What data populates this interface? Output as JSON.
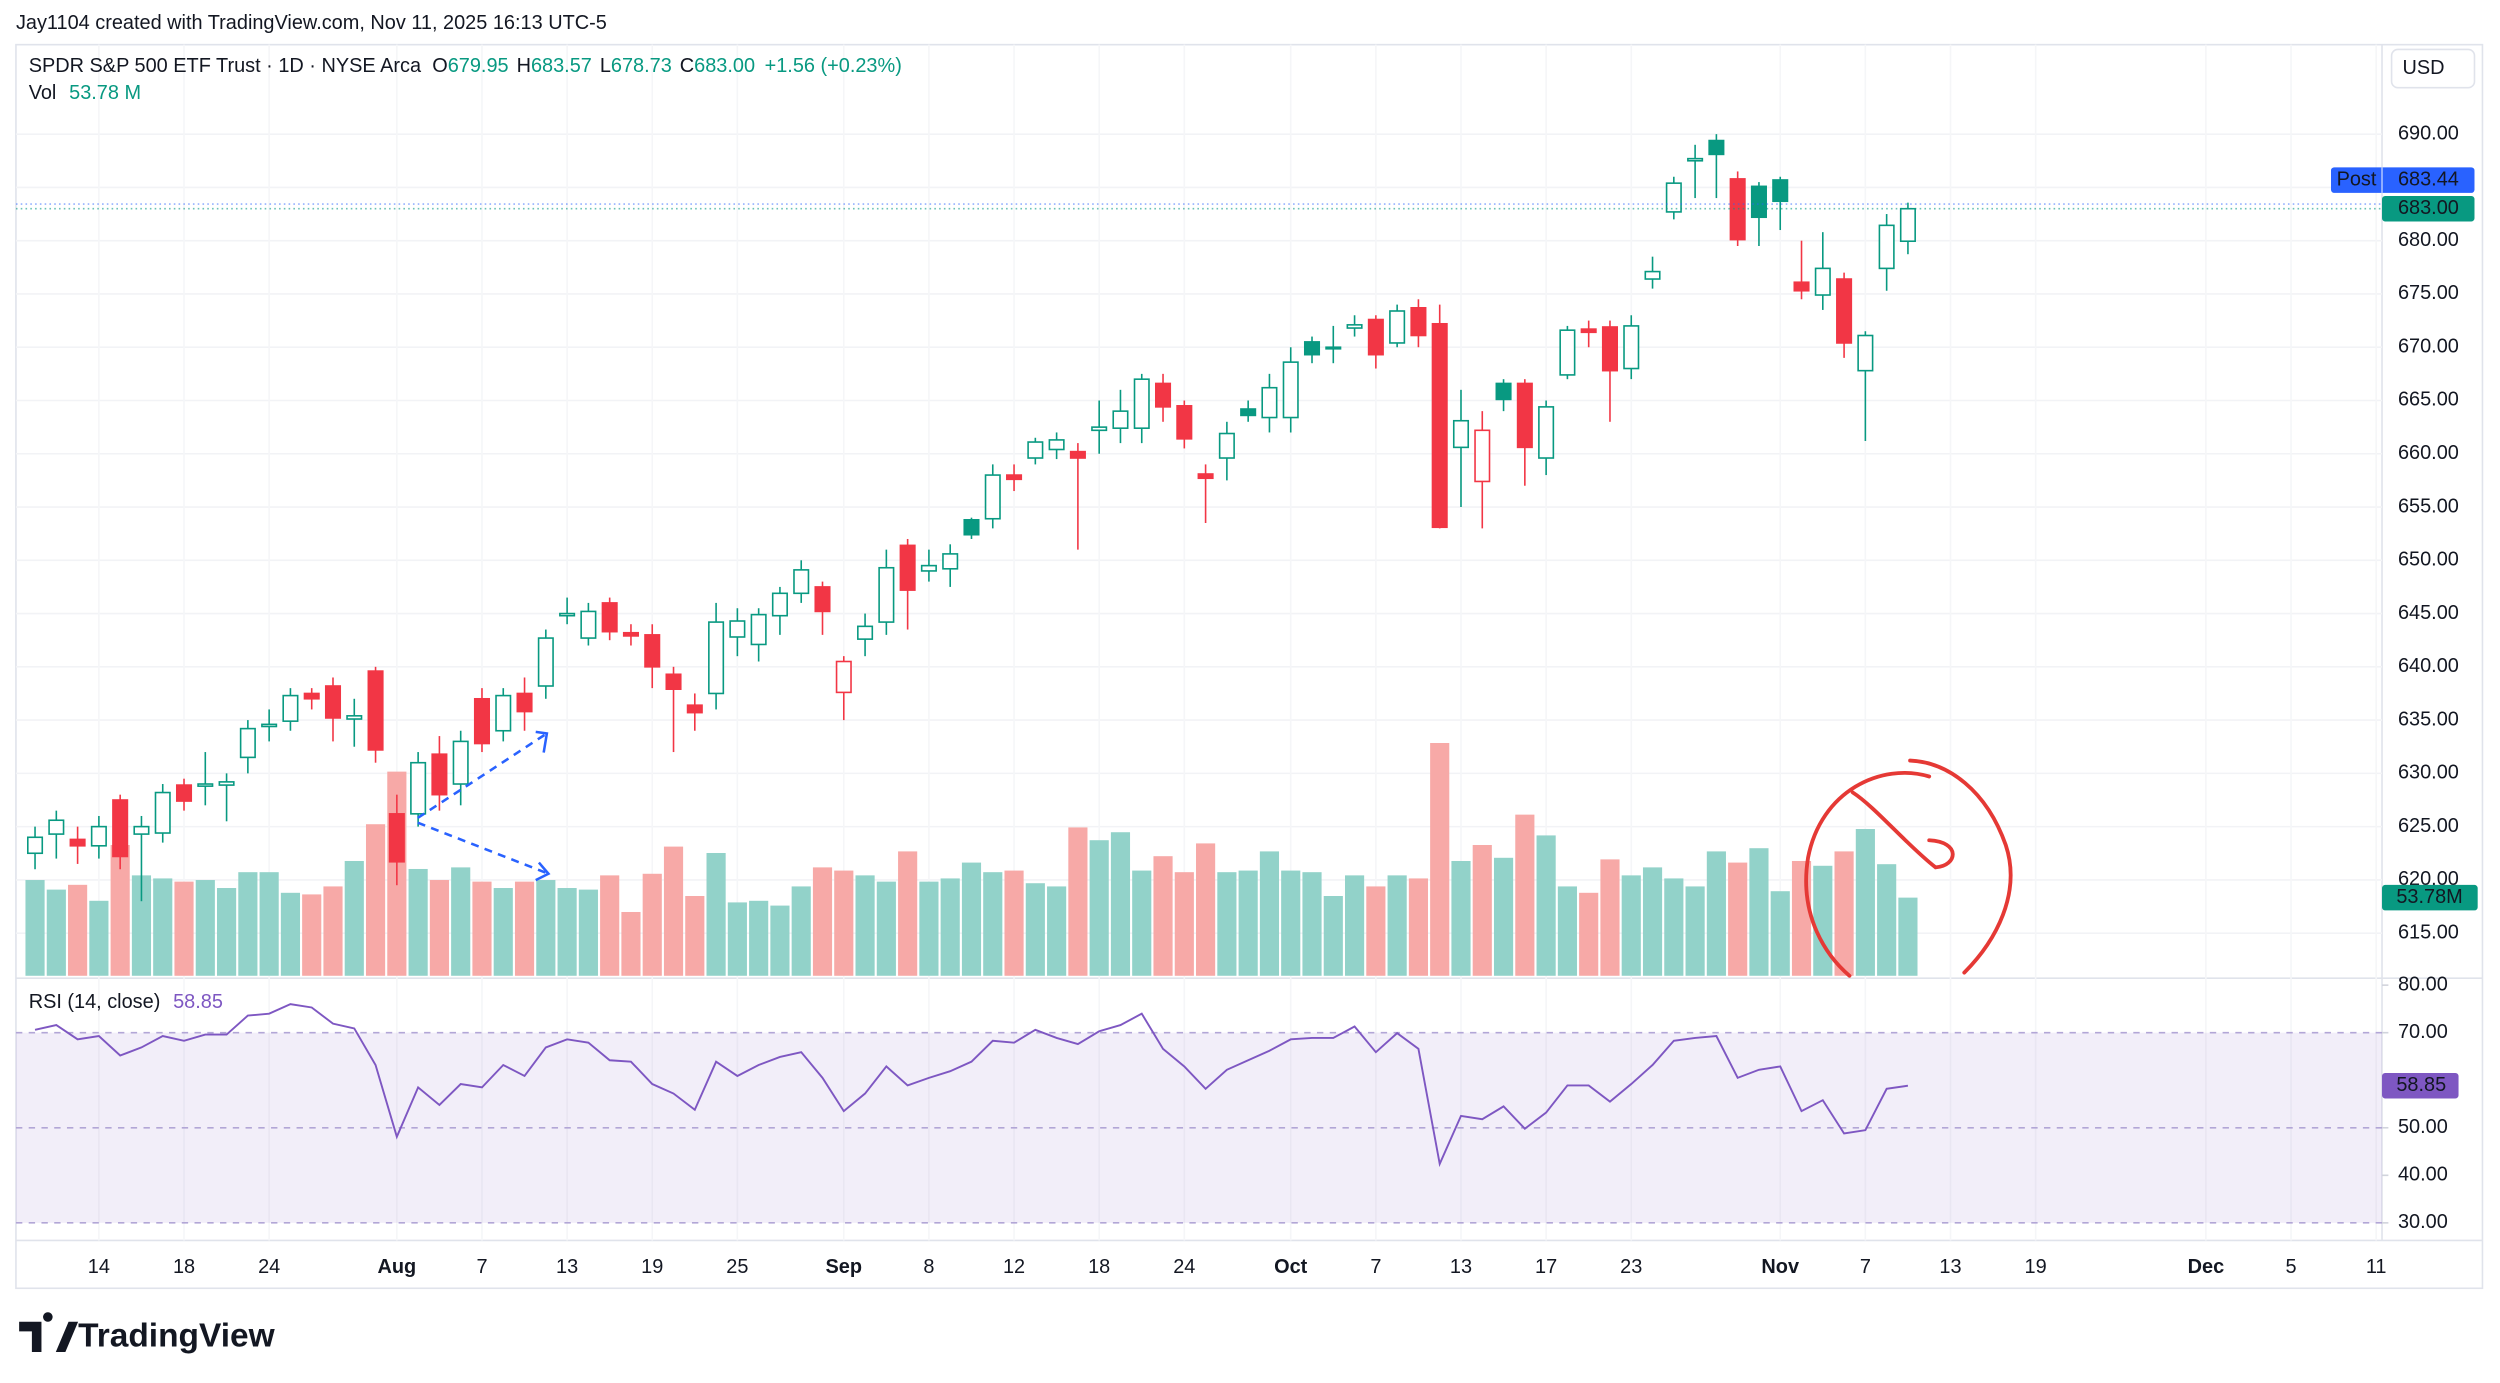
{
  "header": {
    "credit": "Jay1104 created with TradingView.com, Nov 11, 2025 16:13 UTC-5",
    "currency": "USD",
    "logo": "TradingView"
  },
  "chart_data": {
    "type": "candlestick",
    "title": "SPDR S&P 500 ETF Trust · 1D · NYSE Arca",
    "legend": {
      "open_label": "O",
      "high_label": "H",
      "low_label": "L",
      "close_label": "C",
      "close": "683.00",
      "change": "+1.56 (+0.23%)"
    },
    "categories": [
      null,
      null,
      null,
      "14",
      null,
      null,
      null,
      "18",
      null,
      null,
      null,
      "24",
      null,
      null,
      null,
      null,
      null,
      "Aug",
      null,
      null,
      null,
      "7",
      null,
      null,
      null,
      "13",
      null,
      null,
      null,
      "19",
      null,
      null,
      null,
      "25",
      null,
      null,
      null,
      null,
      "Sep",
      null,
      null,
      null,
      "8",
      null,
      null,
      null,
      "12",
      null,
      null,
      null,
      "18",
      null,
      null,
      null,
      "24",
      null,
      null,
      null,
      null,
      "Oct",
      null,
      null,
      null,
      "7",
      null,
      null,
      null,
      "13",
      null,
      null,
      null,
      "17",
      null,
      null,
      null,
      "23",
      null,
      null,
      null,
      null,
      null,
      null,
      "Nov",
      null,
      null,
      null,
      "7",
      null,
      null,
      null,
      "13",
      null,
      null,
      null,
      "19",
      null,
      null,
      null,
      null,
      null,
      null,
      null,
      "Dec",
      null,
      null,
      null,
      "5",
      null,
      null,
      null,
      "11"
    ],
    "open": [
      622.5,
      624.3,
      623.8,
      623.2,
      627.5,
      624.3,
      624.4,
      628.9,
      628.8,
      628.9,
      631.5,
      634.4,
      634.9,
      637.5,
      638.2,
      635.1,
      639.6,
      626.2,
      626.2,
      631.8,
      629,
      637,
      634,
      637.5,
      638.2,
      644.8,
      642.7,
      646,
      643.2,
      643,
      639.3,
      636.4,
      637.5,
      642.8,
      642.1,
      644.8,
      646.9,
      647.5,
      637.6,
      642.6,
      644.2,
      651.4,
      649,
      649.2,
      653.8,
      653.9,
      658,
      659.6,
      660.4,
      660.2,
      662.2,
      662.4,
      662.4,
      666.6,
      664.5,
      658.1,
      659.6,
      664.2,
      663.4,
      663.4,
      670.5,
      669.9,
      671.8,
      672.6,
      670.4,
      673.7,
      672.2,
      660.6,
      657.4,
      666.6,
      666.6,
      659.6,
      667.4,
      671.7,
      671.9,
      668,
      676.4,
      682.7,
      687.5,
      689.4,
      685.8,
      685.1,
      685.7,
      676.1,
      674.9,
      676.4,
      667.8,
      677.4,
      679.95,
      null,
      null,
      null,
      null,
      null,
      null,
      null,
      null,
      null,
      null,
      null,
      null,
      null,
      null,
      null,
      null,
      null,
      null,
      null,
      null,
      null,
      null
    ],
    "high": [
      625,
      626.5,
      625,
      626,
      628,
      626,
      629,
      629.5,
      632,
      630,
      635,
      636,
      638,
      638,
      639,
      637,
      640,
      628,
      632,
      633.5,
      634,
      638,
      638,
      639,
      643.5,
      646.5,
      646,
      646.5,
      644,
      644,
      640,
      637.5,
      646,
      645.5,
      645.5,
      647.5,
      650,
      648,
      641,
      645,
      651,
      652,
      651,
      651.5,
      654,
      659,
      659,
      661.5,
      662,
      661,
      665,
      666,
      667.5,
      667.5,
      665,
      659,
      663,
      665,
      667.5,
      670,
      671,
      672,
      673,
      673,
      674,
      674.5,
      674,
      666,
      664,
      667,
      667,
      665,
      672,
      672.5,
      672.5,
      673,
      678.5,
      686,
      689,
      690,
      686.5,
      685.5,
      686,
      680,
      680.8,
      677,
      671.5,
      682.5,
      683.57,
      null,
      null,
      null,
      null,
      null,
      null,
      null,
      null,
      null,
      null,
      null,
      null,
      null,
      null,
      null,
      null,
      null,
      null,
      null,
      null,
      null,
      null
    ],
    "low": [
      621,
      622,
      621.5,
      622,
      621,
      618,
      623.5,
      626.5,
      627,
      625.5,
      630,
      633,
      634,
      636,
      633,
      632.5,
      631,
      619.5,
      625,
      626.5,
      627,
      632,
      633,
      634,
      637,
      644,
      642,
      642.5,
      642,
      638,
      632,
      634,
      636,
      641,
      640.5,
      643,
      646,
      643,
      635,
      641,
      643,
      643.5,
      648,
      647.5,
      652,
      653,
      656.5,
      659,
      659.5,
      651,
      660,
      661,
      661,
      663,
      660.5,
      653.5,
      657.5,
      663,
      662,
      662,
      668.5,
      668.5,
      671,
      668,
      670,
      670,
      653,
      655,
      653,
      664,
      657,
      658,
      667,
      670,
      663,
      667,
      675.5,
      682,
      684,
      684,
      679.5,
      679.5,
      681,
      674.5,
      673.5,
      669,
      661.2,
      675.3,
      678.73,
      null,
      null,
      null,
      null,
      null,
      null,
      null,
      null,
      null,
      null,
      null,
      null,
      null,
      null,
      null,
      null,
      null,
      null,
      null,
      null,
      null,
      null
    ],
    "close": [
      624,
      625.6,
      623.2,
      625,
      622.2,
      625,
      628.2,
      627.4,
      629,
      629.2,
      634.2,
      634.6,
      637.3,
      637,
      635.2,
      635.4,
      632.2,
      621.7,
      631,
      628,
      633,
      632.8,
      637.3,
      635.8,
      642.7,
      645.0,
      645.2,
      643.3,
      642.9,
      640,
      637.9,
      635.7,
      644.2,
      644.3,
      644.9,
      646.9,
      649.1,
      645.2,
      640.5,
      643.8,
      649.3,
      647.2,
      649.5,
      650.6,
      652.4,
      658,
      657.6,
      661.1,
      661.3,
      659.6,
      662.5,
      664,
      667,
      664.4,
      661.4,
      657.7,
      661.9,
      663.6,
      666.2,
      668.6,
      669.3,
      670,
      672.1,
      669.3,
      673.4,
      671.1,
      653.1,
      663.1,
      662.2,
      665.1,
      660.6,
      664.4,
      671.6,
      671.4,
      667.8,
      672,
      677.1,
      685.4,
      687.7,
      688.1,
      680.1,
      682.2,
      683.7,
      675.3,
      677.4,
      670.4,
      671.1,
      681.44,
      683.0,
      null,
      null,
      null,
      null,
      null,
      null,
      null,
      null,
      null,
      null,
      null,
      null,
      null,
      null,
      null,
      null,
      null,
      null,
      null,
      null,
      null,
      null
    ],
    "up_color": "#089981",
    "down_color": "#f23645",
    "ylim": [
      611,
      698.4
    ],
    "yticks": [
      {
        "value": 615,
        "label": "615.00"
      },
      {
        "value": 620,
        "label": "620.00"
      },
      {
        "value": 625,
        "label": "625.00"
      },
      {
        "value": 630,
        "label": "630.00"
      },
      {
        "value": 635,
        "label": "635.00"
      },
      {
        "value": 640,
        "label": "640.00"
      },
      {
        "value": 645,
        "label": "645.00"
      },
      {
        "value": 650,
        "label": "650.00"
      },
      {
        "value": 655,
        "label": "655.00"
      },
      {
        "value": 660,
        "label": "660.00"
      },
      {
        "value": 665,
        "label": "665.00"
      },
      {
        "value": 670,
        "label": "670.00"
      },
      {
        "value": 675,
        "label": "675.00"
      },
      {
        "value": 680,
        "label": "680.00"
      },
      {
        "value": 685,
        "label": "685.00"
      },
      {
        "value": 690,
        "label": "690.00"
      }
    ],
    "grid": true,
    "post": {
      "name": "Post",
      "value": 683.44,
      "label": "683.44",
      "color": "#2962ff"
    },
    "volume": {
      "name": "Vol",
      "legend_label": "53.78 M",
      "axis_label": "53.78M",
      "up_color": "#92d2c9",
      "down_color": "#f7a9a7",
      "values": [
        65.9,
        59.3,
        62.6,
        51.6,
        90.0,
        69.1,
        67.0,
        64.8,
        65.9,
        60.4,
        71.3,
        71.3,
        57.1,
        56.0,
        61.5,
        79.0,
        104.3,
        140.5,
        73.5,
        65.9,
        74.6,
        64.8,
        60.4,
        64.8,
        65.9,
        60.4,
        59.3,
        69.1,
        43.9,
        70.2,
        88.9,
        54.9,
        84.5,
        50.5,
        51.6,
        48.3,
        61.5,
        74.6,
        72.4,
        69.1,
        64.8,
        85.6,
        64.8,
        67.0,
        77.9,
        71.3,
        72.4,
        63.7,
        61.5,
        102.1,
        93.3,
        98.8,
        72.4,
        82.3,
        71.3,
        91.1,
        71.3,
        72.4,
        85.6,
        72.4,
        71.3,
        54.9,
        69.1,
        61.5,
        69.1,
        67.0,
        160.2,
        79.0,
        90.0,
        81.2,
        110.9,
        96.6,
        61.5,
        57.1,
        80.1,
        69.1,
        74.6,
        67.0,
        61.5,
        85.6,
        77.9,
        87.8,
        58.2,
        79.0,
        75.7,
        85.6,
        101.0,
        76.8,
        53.78,
        null,
        null,
        null,
        null,
        null,
        null,
        null,
        null,
        null,
        null,
        null,
        null,
        null,
        null,
        null,
        null,
        null,
        null,
        null,
        null,
        null,
        null
      ]
    },
    "rsi": {
      "name": "RSI (14, close)",
      "color": "#7e57c2",
      "values": [
        70.6,
        71.6,
        68.6,
        69.3,
        65.2,
        66.9,
        69.3,
        68.3,
        69.6,
        69.6,
        73.6,
        74.0,
        76.0,
        75.3,
        71.9,
        70.9,
        63.2,
        48.1,
        58.5,
        54.8,
        59.2,
        58.5,
        63.2,
        60.9,
        66.9,
        68.6,
        67.9,
        64.2,
        63.9,
        59.2,
        57.2,
        53.8,
        63.9,
        60.9,
        63.2,
        64.9,
        65.9,
        60.5,
        53.5,
        57.2,
        62.9,
        58.9,
        60.5,
        61.9,
        63.9,
        68.3,
        67.9,
        70.6,
        68.9,
        67.6,
        70.3,
        71.6,
        74.0,
        66.6,
        62.9,
        58.2,
        62.2,
        64.2,
        66.2,
        68.6,
        68.9,
        68.9,
        71.3,
        65.9,
        69.9,
        66.6,
        42.4,
        52.5,
        51.8,
        54.5,
        49.8,
        53.2,
        58.9,
        58.9,
        55.5,
        59.2,
        63.2,
        68.3,
        68.9,
        69.3,
        60.5,
        62.2,
        62.9,
        53.5,
        55.8,
        48.8,
        49.5,
        58.2,
        58.85,
        null,
        null,
        null,
        null,
        null,
        null,
        null,
        null,
        null,
        null,
        null,
        null,
        null,
        null,
        null,
        null,
        null,
        null,
        null,
        null,
        null,
        null
      ],
      "ylim": [
        26.3,
        81.3
      ],
      "yticks": [
        {
          "value": 30,
          "label": "30.00"
        },
        {
          "value": 40,
          "label": "40.00"
        },
        {
          "value": 50,
          "label": "50.00"
        },
        {
          "value": 70,
          "label": "70.00"
        },
        {
          "value": 80,
          "label": "80.00"
        }
      ],
      "bands": [
        70,
        50,
        30
      ]
    }
  }
}
